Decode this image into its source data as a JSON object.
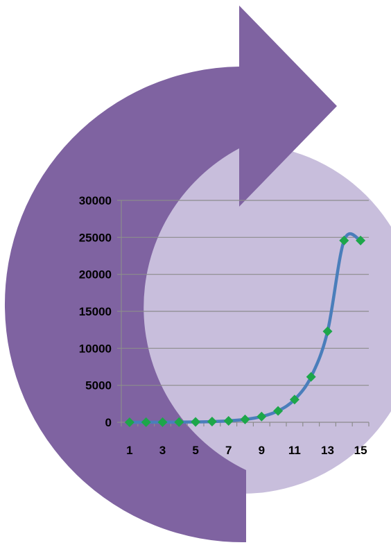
{
  "colors": {
    "arrow": "#7F63A1",
    "disc": "#C8BEDC",
    "line": "#4A7EBB",
    "marker": "#1DA64A",
    "grid": "#8C8C8C"
  },
  "chart_data": {
    "type": "line",
    "title": "",
    "xlabel": "",
    "ylabel": "",
    "x": [
      1,
      2,
      3,
      4,
      5,
      6,
      7,
      8,
      9,
      10,
      11,
      12,
      13,
      14,
      15
    ],
    "x_tick_labels": [
      "1",
      "3",
      "5",
      "7",
      "9",
      "11",
      "13",
      "15"
    ],
    "ylim": [
      0,
      30000
    ],
    "y_ticks": [
      0,
      5000,
      10000,
      15000,
      20000,
      25000,
      30000
    ],
    "y_tick_labels": [
      "0",
      "5000",
      "10000",
      "15000",
      "20000",
      "25000",
      "30000"
    ],
    "series": [
      {
        "values": [
          3,
          6,
          12,
          24,
          48,
          96,
          192,
          384,
          768,
          1536,
          3072,
          6144,
          12288,
          24576,
          24576
        ],
        "marker": "diamond"
      }
    ],
    "grid": true,
    "legend": "none"
  }
}
